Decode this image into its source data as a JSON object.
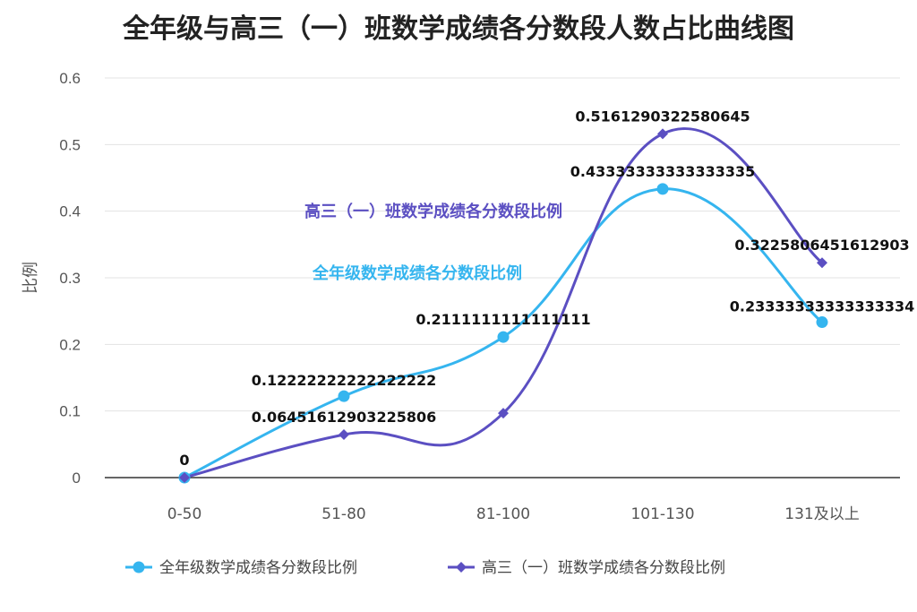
{
  "chart_data": {
    "type": "line",
    "title": "全年级与高三（一）班数学成绩各分数段人数占比曲线图",
    "ylabel": "比例",
    "xlabel": "",
    "categories": [
      "0-50",
      "51-80",
      "81-100",
      "101-130",
      "131及以上"
    ],
    "ylim": [
      0,
      0.6
    ],
    "yticks": [
      "0",
      "0.1",
      "0.2",
      "0.3",
      "0.4",
      "0.5",
      "0.6"
    ],
    "grid": true,
    "legend_position": "bottom",
    "series": [
      {
        "name": "全年级数学成绩各分数段比例",
        "color": "#35b5ef",
        "marker": "circle",
        "values": [
          0,
          0.12222222222222222,
          0.2111111111111111,
          0.43333333333333335,
          0.23333333333333334
        ],
        "labels": [
          "0",
          "0.12222222222222222",
          "0.2111111111111111",
          "0.43333333333333335",
          "0.23333333333333334"
        ]
      },
      {
        "name": "高三（一）班数学成绩各分数段比例",
        "color": "#5b4fc2",
        "marker": "diamond",
        "values": [
          0,
          0.06451612903225806,
          0.0967741935483871,
          0.5161290322580645,
          0.3225806451612903
        ],
        "labels": [
          "",
          "0.06451612903225806",
          "",
          "0.5161290322580645",
          "0.3225806451612903"
        ]
      }
    ],
    "annotations": [
      {
        "text": "高三（一）班数学成绩各分数段比例",
        "color": "#5b4fc2"
      },
      {
        "text": "全年级数学成绩各分数段比例",
        "color": "#35b5ef"
      }
    ]
  }
}
